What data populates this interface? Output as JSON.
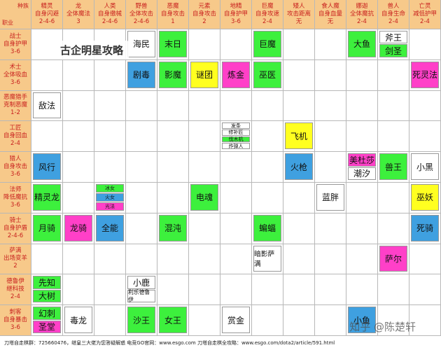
{
  "table": {
    "corner": {
      "top": "种族",
      "bottom": "职业"
    },
    "columns": [
      {
        "name": "精灵",
        "effect": "自身闪避",
        "count": "2-4-6"
      },
      {
        "name": "龙",
        "effect": "全体魔法",
        "count": "3"
      },
      {
        "name": "人类",
        "effect": "自身缴械",
        "count": "2-4-6"
      },
      {
        "name": "野兽",
        "effect": "全体攻击",
        "count": "2-4-6"
      },
      {
        "name": "恶魔",
        "effect": "自身攻击",
        "count": "1"
      },
      {
        "name": "元素",
        "effect": "自身攻击",
        "count": "2"
      },
      {
        "name": "地精",
        "effect": "自身护甲",
        "count": "3-6"
      },
      {
        "name": "巨魔",
        "effect": "自身攻速",
        "count": "2-4"
      },
      {
        "name": "矮人",
        "effect": "攻击距离",
        "count": "无"
      },
      {
        "name": "食人魔",
        "effect": "自身血量",
        "count": "无"
      },
      {
        "name": "娜迦",
        "effect": "全体魔抗",
        "count": "2-4"
      },
      {
        "name": "兽人",
        "effect": "自身生命",
        "count": "2-4"
      },
      {
        "name": "亡灵",
        "effect": "减低护甲",
        "count": "2-4"
      }
    ],
    "rows": [
      {
        "name": "战士",
        "effect": "自身护甲",
        "count": "3-6",
        "cells": [
          [],
          [],
          [],
          [
            {
              "text": "海民",
              "color": "#ffffff"
            }
          ],
          [
            {
              "text": "末日",
              "color": "#3df03d"
            }
          ],
          [],
          [],
          [
            {
              "text": "巨魔",
              "color": "#3df03d"
            }
          ],
          [],
          [],
          [
            {
              "text": "大鱼",
              "color": "#3df03d"
            }
          ],
          [
            {
              "text": "斧王",
              "color": "#ffffff"
            },
            {
              "text": "剑圣",
              "color": "#3df03d"
            }
          ],
          []
        ]
      },
      {
        "name": "术士",
        "effect": "全体吸血",
        "count": "3-6",
        "cells": [
          [],
          [],
          [],
          [
            {
              "text": "剧毒",
              "color": "#3fa0e0"
            }
          ],
          [
            {
              "text": "影魔",
              "color": "#3df03d"
            }
          ],
          [
            {
              "text": "谜团",
              "color": "#ffff20"
            }
          ],
          [
            {
              "text": "炼金",
              "color": "#ff40c8"
            }
          ],
          [
            {
              "text": "巫医",
              "color": "#3df03d"
            }
          ],
          [],
          [],
          [],
          [],
          [
            {
              "text": "死灵法",
              "color": "#ff40c8"
            }
          ]
        ]
      },
      {
        "name": "恶魔猎手",
        "effect": "克制恶魔",
        "count": "1-2",
        "cells": [
          [
            {
              "text": "敌法",
              "color": "#ffffff"
            }
          ],
          [],
          [],
          [],
          [],
          [],
          [],
          [],
          [],
          [],
          [],
          [],
          []
        ]
      },
      {
        "name": "工匠",
        "effect": "自身回血",
        "count": "2-4",
        "cells": [
          [],
          [],
          [],
          [],
          [],
          [],
          [
            {
              "text": "发条",
              "color": "#ffffff"
            },
            {
              "text": "修补匠",
              "color": "#ffffff"
            },
            {
              "text": "伐木机",
              "color": "#3df03d"
            },
            {
              "text": "炸弹人",
              "color": "#ffffff"
            }
          ],
          [],
          [
            {
              "text": "飞机",
              "color": "#ffff20"
            }
          ],
          [],
          [],
          [],
          []
        ]
      },
      {
        "name": "猎人",
        "effect": "自身攻击",
        "count": "3-6",
        "cells": [
          [
            {
              "text": "风行",
              "color": "#3fa0e0"
            }
          ],
          [],
          [],
          [],
          [],
          [],
          [],
          [],
          [
            {
              "text": "火枪",
              "color": "#3fa0e0"
            }
          ],
          [],
          [
            {
              "text": "美杜莎",
              "color": "#ff40c8"
            },
            {
              "text": "潮汐",
              "color": "#ffffff"
            }
          ],
          [
            {
              "text": "兽王",
              "color": "#3df03d"
            }
          ],
          [
            {
              "text": "小黑",
              "color": "#ffffff"
            }
          ]
        ]
      },
      {
        "name": "法师",
        "effect": "降低魔抗",
        "count": "3-6",
        "cells": [
          [
            {
              "text": "精灵龙",
              "color": "#3df03d"
            }
          ],
          [],
          [
            {
              "text": "冰女",
              "color": "#3df03d"
            },
            {
              "text": "火女",
              "color": "#3fa0e0"
            },
            {
              "text": "光法",
              "color": "#ff40c8"
            }
          ],
          [],
          [],
          [
            {
              "text": "电魂",
              "color": "#3df03d"
            }
          ],
          [],
          [],
          [],
          [
            {
              "text": "蓝胖",
              "color": "#ffffff"
            }
          ],
          [],
          [],
          [
            {
              "text": "巫妖",
              "color": "#ffff20"
            }
          ]
        ]
      },
      {
        "name": "骑士",
        "effect": "自身护盾",
        "count": "2-4-6",
        "cells": [
          [
            {
              "text": "月骑",
              "color": "#3df03d"
            }
          ],
          [
            {
              "text": "龙骑",
              "color": "#ff40c8"
            }
          ],
          [
            {
              "text": "全能",
              "color": "#3fa0e0"
            }
          ],
          [],
          [
            {
              "text": "混沌",
              "color": "#3df03d"
            }
          ],
          [],
          [],
          [
            {
              "text": "蝙蝠",
              "color": "#3df03d"
            }
          ],
          [],
          [],
          [],
          [],
          [
            {
              "text": "死骑",
              "color": "#3fa0e0"
            }
          ]
        ]
      },
      {
        "name": "萨满",
        "effect": "出场变羊",
        "count": "2",
        "cells": [
          [],
          [],
          [],
          [],
          [],
          [],
          [],
          [
            {
              "text": "暗影萨满",
              "color": "#ffffff"
            }
          ],
          [],
          [],
          [],
          [
            {
              "text": "萨尔",
              "color": "#ff40c8"
            }
          ],
          []
        ]
      },
      {
        "name": "德鲁伊",
        "effect": "继科技",
        "count": "2-4",
        "cells": [
          [
            {
              "text": "先知",
              "color": "#3df03d"
            },
            {
              "text": "大树",
              "color": "#3df03d"
            }
          ],
          [],
          [],
          [
            {
              "text": "小鹿",
              "color": "#ffffff"
            },
            {
              "text": "利乐德鲁伊",
              "color": "#ffffff"
            }
          ],
          [],
          [],
          [],
          [],
          [],
          [],
          [],
          [],
          []
        ]
      },
      {
        "name": "刺客",
        "effect": "自身暴击",
        "count": "3-6",
        "cells": [
          [
            {
              "text": "幻刺",
              "color": "#3df03d"
            },
            {
              "text": "圣堂",
              "color": "#ff40c8"
            }
          ],
          [
            {
              "text": "毒龙",
              "color": "#ffffff"
            }
          ],
          [],
          [
            {
              "text": "沙王",
              "color": "#3df03d"
            }
          ],
          [
            {
              "text": "女王",
              "color": "#3df03d"
            }
          ],
          [],
          [
            {
              "text": "赏金",
              "color": "#ffffff"
            }
          ],
          [],
          [],
          [],
          [
            {
              "text": "小鱼",
              "color": "#3fa0e0"
            }
          ],
          [],
          []
        ]
      }
    ]
  },
  "footer": "刀塔自走棋群：725660476，继皇三大佬为您答疑解惑    电竞GO官网：www.esgo.com    刀塔自走棋全攻略：www.esgo.com/dota2/article/591.html",
  "watermark": "古企明星攻略",
  "credit": "知乎 @陈楚轩"
}
